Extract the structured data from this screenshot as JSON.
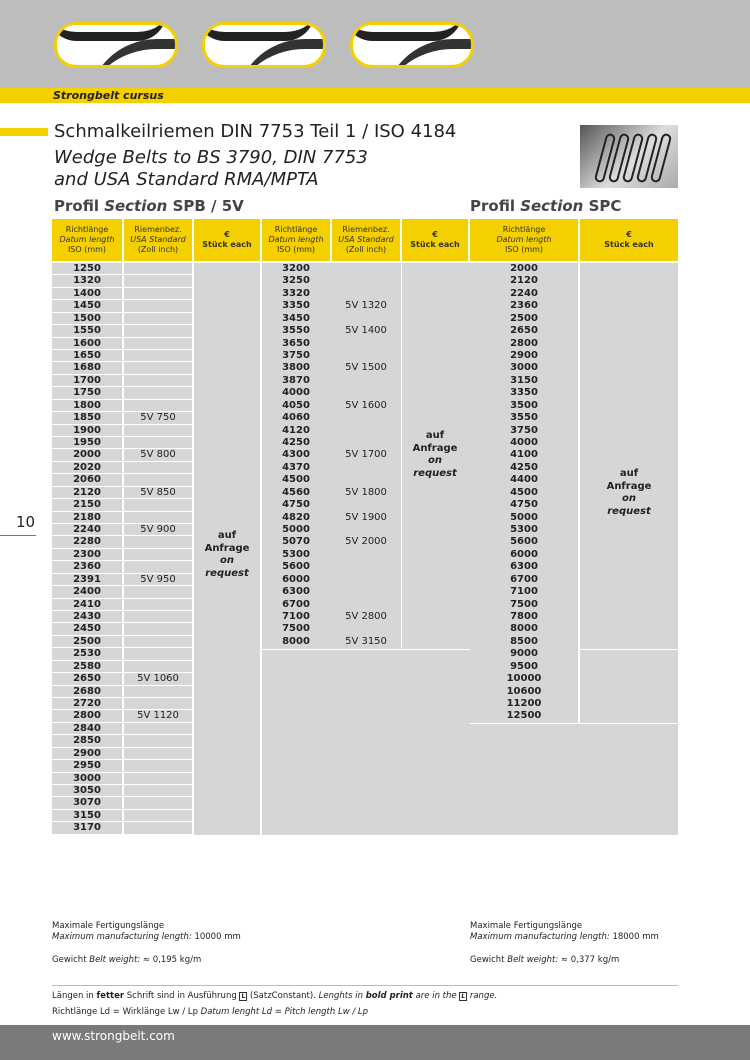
{
  "header": {
    "brand": "Strongbelt cursus",
    "thumbnails": [
      "belt-image-1",
      "belt-image-2",
      "belt-image-3"
    ]
  },
  "title": {
    "line1": "Schmalkeilriemen DIN 7753 Teil 1 / ISO 4184",
    "line2": "Wedge Belts to BS 3790, DIN 7753",
    "line3": "and USA Standard RMA/MPTA"
  },
  "page_number": "10",
  "spb": {
    "heading_de": "Profil ",
    "heading_en": "Section",
    "heading_code": " SPB / 5V",
    "col_length": [
      "Richtlänge",
      "Datum length",
      "ISO (mm)"
    ],
    "col_usa": [
      "Riemenbez.",
      "USA Standard",
      "(Zoll inch)"
    ],
    "col_price": [
      "€",
      "Stück each"
    ],
    "request": [
      "auf",
      "Anfrage",
      "on",
      "request"
    ],
    "block1": [
      [
        "1250",
        ""
      ],
      [
        "1320",
        ""
      ],
      [
        "1400",
        ""
      ],
      [
        "1450",
        ""
      ],
      [
        "1500",
        ""
      ],
      [
        "1550",
        ""
      ],
      [
        "1600",
        ""
      ],
      [
        "1650",
        ""
      ],
      [
        "1680",
        ""
      ],
      [
        "1700",
        ""
      ],
      [
        "1750",
        ""
      ],
      [
        "1800",
        ""
      ],
      [
        "1850",
        "5V 750"
      ],
      [
        "1900",
        ""
      ],
      [
        "1950",
        ""
      ],
      [
        "2000",
        "5V 800"
      ],
      [
        "2020",
        ""
      ],
      [
        "2060",
        ""
      ],
      [
        "2120",
        "5V 850"
      ],
      [
        "2150",
        ""
      ],
      [
        "2180",
        ""
      ],
      [
        "2240",
        "5V 900"
      ],
      [
        "2280",
        ""
      ],
      [
        "2300",
        ""
      ],
      [
        "2360",
        ""
      ],
      [
        "2391",
        "5V 950"
      ],
      [
        "2400",
        ""
      ],
      [
        "2410",
        ""
      ],
      [
        "2430",
        ""
      ],
      [
        "2450",
        ""
      ],
      [
        "2500",
        ""
      ],
      [
        "2530",
        ""
      ],
      [
        "2580",
        ""
      ],
      [
        "2650",
        "5V 1060"
      ],
      [
        "2680",
        ""
      ],
      [
        "2720",
        ""
      ],
      [
        "2800",
        "5V 1120"
      ],
      [
        "2840",
        ""
      ],
      [
        "2850",
        ""
      ],
      [
        "2900",
        ""
      ],
      [
        "2950",
        ""
      ],
      [
        "3000",
        ""
      ],
      [
        "3050",
        ""
      ],
      [
        "3070",
        ""
      ],
      [
        "3150",
        ""
      ],
      [
        "3170",
        ""
      ]
    ],
    "block2": [
      [
        "3200",
        ""
      ],
      [
        "3250",
        ""
      ],
      [
        "3320",
        ""
      ],
      [
        "3350",
        "5V 1320"
      ],
      [
        "3450",
        ""
      ],
      [
        "3550",
        "5V 1400"
      ],
      [
        "3650",
        ""
      ],
      [
        "3750",
        ""
      ],
      [
        "3800",
        "5V 1500"
      ],
      [
        "3870",
        ""
      ],
      [
        "4000",
        ""
      ],
      [
        "4050",
        "5V 1600"
      ],
      [
        "4060",
        ""
      ],
      [
        "4120",
        ""
      ],
      [
        "4250",
        ""
      ],
      [
        "4300",
        "5V 1700"
      ],
      [
        "4370",
        ""
      ],
      [
        "4500",
        ""
      ],
      [
        "4560",
        "5V 1800"
      ],
      [
        "4750",
        ""
      ],
      [
        "4820",
        "5V 1900"
      ],
      [
        "5000",
        ""
      ],
      [
        "5070",
        "5V 2000"
      ],
      [
        "5300",
        ""
      ],
      [
        "5600",
        ""
      ],
      [
        "6000",
        ""
      ],
      [
        "6300",
        ""
      ],
      [
        "6700",
        ""
      ],
      [
        "7100",
        "5V 2800"
      ],
      [
        "7500",
        ""
      ],
      [
        "8000",
        "5V 3150"
      ]
    ],
    "max_length_de": "Maximale Fertigungslänge",
    "max_length_en": "Maximum manufacturing length:",
    "max_length_value": "10000 mm",
    "weight_de": "Gewicht ",
    "weight_en": "Belt weight:",
    "weight_value": " ≈ 0,195 kg/m"
  },
  "spc": {
    "heading_de": "Profil ",
    "heading_en": "Section",
    "heading_code": " SPC",
    "col_length": [
      "Richtlänge",
      "Datum length",
      "ISO (mm)"
    ],
    "col_price": [
      "€",
      "Stück each"
    ],
    "request": [
      "auf",
      "Anfrage",
      "on",
      "request"
    ],
    "lengths": [
      "2000",
      "2120",
      "2240",
      "2360",
      "2500",
      "2650",
      "2800",
      "2900",
      "3000",
      "3150",
      "3350",
      "3500",
      "3550",
      "3750",
      "4000",
      "4100",
      "4250",
      "4400",
      "4500",
      "4750",
      "5000",
      "5300",
      "5600",
      "6000",
      "6300",
      "6700",
      "7100",
      "7500",
      "7800",
      "8000",
      "8500",
      "9000",
      "9500",
      "10000",
      "10600",
      "11200",
      "12500"
    ],
    "max_length_de": "Maximale Fertigungslänge",
    "max_length_en": "Maximum manufacturing length:",
    "max_length_value": "18000 mm",
    "weight_de": "Gewicht ",
    "weight_en": "Belt weight:",
    "weight_value": " ≈ 0,377 kg/m"
  },
  "notes": {
    "line1_a": "Längen in ",
    "line1_bold": "fetter",
    "line1_b": " Schrift sind in Ausführung ",
    "line1_symbol": "L",
    "line1_c": " (SatzConstant). ",
    "line1_en": "Lenghts in ",
    "line1_en_bold": "bold print",
    "line1_en_b": " are in the ",
    "line1_en_c": " range.",
    "line2": "Richtlänge Ld = Wirklänge Lw / Lp  ",
    "line2_en": "Datum lenght Ld = Pitch length Lw / Lp"
  },
  "footer": {
    "url": "www.strongbelt.com"
  },
  "colors": {
    "yellow": "#f5d000",
    "gray_band": "#bdbdbd",
    "cell": "#d6d6d6",
    "footer": "#7a7a7a"
  }
}
